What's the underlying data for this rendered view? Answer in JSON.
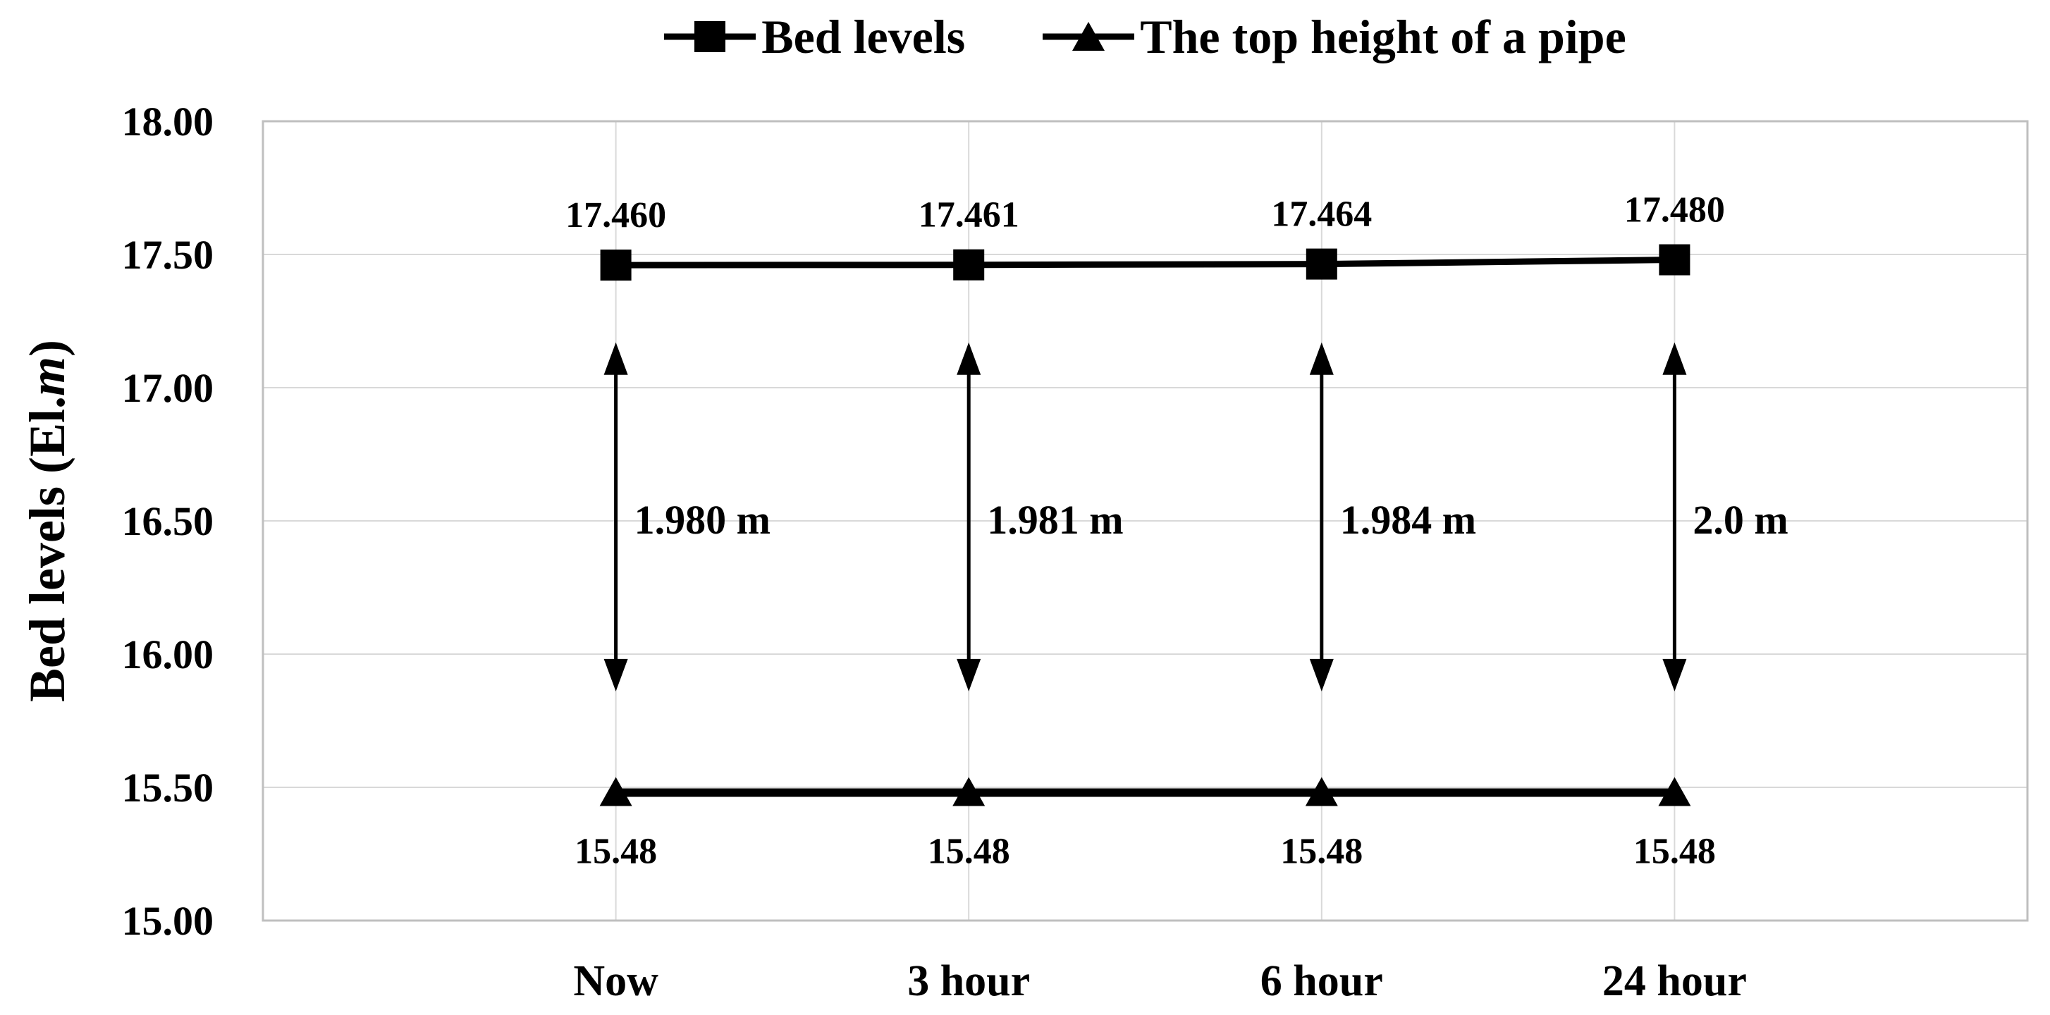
{
  "figure": {
    "background": "#ffffff",
    "text_color": "#000000",
    "series_color": "#000000",
    "gridline_color": "#d9d9d9",
    "plot_border_color": "#bfbfbf"
  },
  "legend": {
    "items": [
      {
        "label": "Bed levels",
        "marker": "square"
      },
      {
        "label": "The top height of a pipe",
        "marker": "triangle"
      }
    ]
  },
  "y_axis_title": {
    "prefix": "Bed levels (El.",
    "italic": "m",
    "suffix": ")"
  },
  "chart_data": {
    "type": "line",
    "title": "",
    "xlabel": "",
    "ylabel": "Bed levels (El.m)",
    "categories": [
      "Now",
      "3 hour",
      "6 hour",
      "24 hour"
    ],
    "series": [
      {
        "name": "Bed levels",
        "marker": "square",
        "values": [
          17.46,
          17.461,
          17.464,
          17.48
        ],
        "point_labels": [
          "17.460",
          "17.461",
          "17.464",
          "17.480"
        ],
        "point_label_position": "above"
      },
      {
        "name": "The top height of a pipe",
        "marker": "triangle",
        "values": [
          15.48,
          15.48,
          15.48,
          15.48
        ],
        "point_labels": [
          "15.48",
          "15.48",
          "15.48",
          "15.48"
        ],
        "point_label_position": "below"
      }
    ],
    "gap_arrows": {
      "labels": [
        "1.980 m",
        "1.981 m",
        "1.984 m",
        "2.0 m"
      ],
      "top_value": 17.17,
      "bottom_value": 15.86,
      "label_at_value": 16.5
    },
    "ylim": [
      15.0,
      18.0
    ],
    "y_tick_step": 0.5,
    "y_tick_labels": [
      "18.00",
      "17.50",
      "17.00",
      "16.50",
      "16.00",
      "15.50",
      "15.00"
    ],
    "grid": true,
    "legend_position": "top-center"
  }
}
